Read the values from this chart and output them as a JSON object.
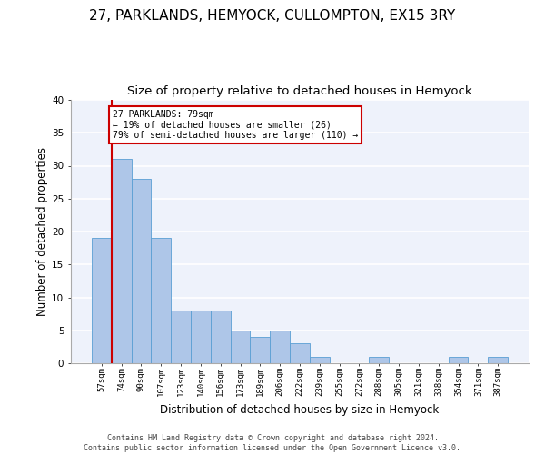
{
  "title": "27, PARKLANDS, HEMYOCK, CULLOMPTON, EX15 3RY",
  "subtitle": "Size of property relative to detached houses in Hemyock",
  "xlabel": "Distribution of detached houses by size in Hemyock",
  "ylabel": "Number of detached properties",
  "categories": [
    "57sqm",
    "74sqm",
    "90sqm",
    "107sqm",
    "123sqm",
    "140sqm",
    "156sqm",
    "173sqm",
    "189sqm",
    "206sqm",
    "222sqm",
    "239sqm",
    "255sqm",
    "272sqm",
    "288sqm",
    "305sqm",
    "321sqm",
    "338sqm",
    "354sqm",
    "371sqm",
    "387sqm"
  ],
  "values": [
    19,
    31,
    28,
    19,
    8,
    8,
    8,
    5,
    4,
    5,
    3,
    1,
    0,
    0,
    1,
    0,
    0,
    0,
    1,
    0,
    1
  ],
  "bar_color": "#aec6e8",
  "bar_edge_color": "#5a9fd4",
  "background_color": "#eef2fb",
  "grid_color": "#ffffff",
  "marker_line_color": "#cc0000",
  "annotation_text": "27 PARKLANDS: 79sqm\n← 19% of detached houses are smaller (26)\n79% of semi-detached houses are larger (110) →",
  "annotation_box_color": "#ffffff",
  "annotation_box_edge": "#cc0000",
  "ylim": [
    0,
    40
  ],
  "yticks": [
    0,
    5,
    10,
    15,
    20,
    25,
    30,
    35,
    40
  ],
  "footer_text": "Contains HM Land Registry data © Crown copyright and database right 2024.\nContains public sector information licensed under the Open Government Licence v3.0.",
  "title_fontsize": 11,
  "subtitle_fontsize": 9.5,
  "ylabel_fontsize": 8.5,
  "xlabel_fontsize": 8.5
}
